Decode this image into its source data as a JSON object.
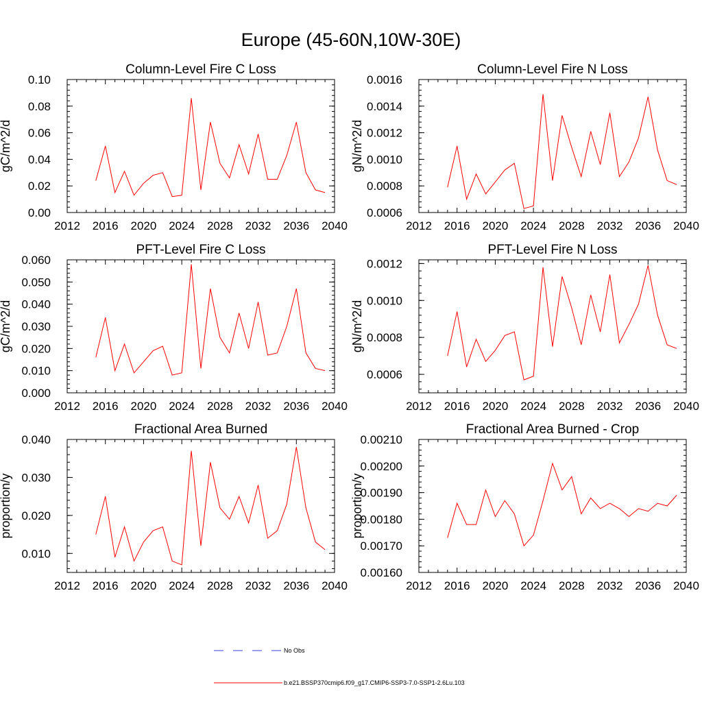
{
  "figure": {
    "title": "Europe (45-60N,10W-30E)"
  },
  "legend": {
    "entries": [
      {
        "label": "No Obs",
        "color": "#3b3bdc",
        "style": "dashed"
      },
      {
        "label": "b.e21.BSSP370cmip6.f09_g17.CMIP6-SSP3-7.0-SSP1-2.6Lu.103",
        "color": "#ff0000",
        "style": "solid"
      }
    ]
  },
  "chart_data": [
    {
      "type": "line",
      "title": "Column-Level Fire C Loss",
      "ylabel": "gC/m^2/d",
      "xlim": [
        2012,
        2040
      ],
      "ylim": [
        0,
        0.1
      ],
      "xticks": [
        "2012",
        "2016",
        "2020",
        "2024",
        "2028",
        "2032",
        "2036",
        "2040"
      ],
      "yticks": [
        "0.00",
        "0.02",
        "0.04",
        "0.06",
        "0.08",
        "0.10"
      ],
      "x": [
        2015,
        2016,
        2017,
        2018,
        2019,
        2020,
        2021,
        2022,
        2023,
        2024,
        2025,
        2026,
        2027,
        2028,
        2029,
        2030,
        2031,
        2032,
        2033,
        2034,
        2035,
        2036,
        2037,
        2038,
        2039
      ],
      "series": [
        {
          "color": "#ff0000",
          "values": [
            0.024,
            0.05,
            0.015,
            0.031,
            0.013,
            0.022,
            0.028,
            0.03,
            0.012,
            0.013,
            0.086,
            0.017,
            0.068,
            0.037,
            0.026,
            0.051,
            0.029,
            0.059,
            0.025,
            0.025,
            0.043,
            0.068,
            0.03,
            0.017,
            0.015
          ]
        }
      ]
    },
    {
      "type": "line",
      "title": "Column-Level Fire N Loss",
      "ylabel": "gN/m^2/d",
      "xlim": [
        2012,
        2040
      ],
      "ylim": [
        0.0006,
        0.0016
      ],
      "xticks": [
        "2012",
        "2016",
        "2020",
        "2024",
        "2028",
        "2032",
        "2036",
        "2040"
      ],
      "yticks": [
        "0.0006",
        "0.0008",
        "0.0010",
        "0.0012",
        "0.0014",
        "0.0016"
      ],
      "x": [
        2015,
        2016,
        2017,
        2018,
        2019,
        2020,
        2021,
        2022,
        2023,
        2024,
        2025,
        2026,
        2027,
        2028,
        2029,
        2030,
        2031,
        2032,
        2033,
        2034,
        2035,
        2036,
        2037,
        2038,
        2039
      ],
      "series": [
        {
          "color": "#ff0000",
          "values": [
            0.00079,
            0.0011,
            0.0007,
            0.00089,
            0.00074,
            0.00083,
            0.00092,
            0.00097,
            0.00063,
            0.00065,
            0.00149,
            0.00084,
            0.00133,
            0.00109,
            0.00087,
            0.00121,
            0.00096,
            0.00135,
            0.00087,
            0.00098,
            0.00116,
            0.00147,
            0.00107,
            0.00084,
            0.00081
          ]
        }
      ]
    },
    {
      "type": "line",
      "title": "PFT-Level Fire C Loss",
      "ylabel": "gC/m^2/d",
      "xlim": [
        2012,
        2040
      ],
      "ylim": [
        0,
        0.06
      ],
      "xticks": [
        "2012",
        "2016",
        "2020",
        "2024",
        "2028",
        "2032",
        "2036",
        "2040"
      ],
      "yticks": [
        "0.000",
        "0.010",
        "0.020",
        "0.030",
        "0.040",
        "0.050",
        "0.060"
      ],
      "x": [
        2015,
        2016,
        2017,
        2018,
        2019,
        2020,
        2021,
        2022,
        2023,
        2024,
        2025,
        2026,
        2027,
        2028,
        2029,
        2030,
        2031,
        2032,
        2033,
        2034,
        2035,
        2036,
        2037,
        2038,
        2039
      ],
      "series": [
        {
          "color": "#ff0000",
          "values": [
            0.016,
            0.034,
            0.01,
            0.022,
            0.009,
            0.014,
            0.019,
            0.021,
            0.008,
            0.009,
            0.058,
            0.011,
            0.047,
            0.025,
            0.018,
            0.036,
            0.02,
            0.041,
            0.017,
            0.018,
            0.03,
            0.047,
            0.018,
            0.011,
            0.01
          ]
        }
      ]
    },
    {
      "type": "line",
      "title": "PFT-Level Fire N Loss",
      "ylabel": "gN/m^2/d",
      "xlim": [
        2012,
        2040
      ],
      "ylim": [
        0.0005,
        0.00122
      ],
      "xticks": [
        "2012",
        "2016",
        "2020",
        "2024",
        "2028",
        "2032",
        "2036",
        "2040"
      ],
      "yticks": [
        "0.0006",
        "0.0008",
        "0.0010",
        "0.0012"
      ],
      "x": [
        2015,
        2016,
        2017,
        2018,
        2019,
        2020,
        2021,
        2022,
        2023,
        2024,
        2025,
        2026,
        2027,
        2028,
        2029,
        2030,
        2031,
        2032,
        2033,
        2034,
        2035,
        2036,
        2037,
        2038,
        2039
      ],
      "series": [
        {
          "color": "#ff0000",
          "values": [
            0.0007,
            0.00094,
            0.00064,
            0.00079,
            0.00067,
            0.00073,
            0.00081,
            0.00083,
            0.00057,
            0.00059,
            0.00118,
            0.00075,
            0.00113,
            0.00096,
            0.00076,
            0.00103,
            0.00083,
            0.00114,
            0.00077,
            0.00087,
            0.00098,
            0.00119,
            0.00092,
            0.00076,
            0.00074
          ]
        }
      ]
    },
    {
      "type": "line",
      "title": "Fractional Area Burned",
      "ylabel": "proportion/y",
      "xlim": [
        2012,
        2040
      ],
      "ylim": [
        0.005,
        0.04
      ],
      "xticks": [
        "2012",
        "2016",
        "2020",
        "2024",
        "2028",
        "2032",
        "2036",
        "2040"
      ],
      "yticks": [
        "0.010",
        "0.020",
        "0.030",
        "0.040"
      ],
      "x": [
        2015,
        2016,
        2017,
        2018,
        2019,
        2020,
        2021,
        2022,
        2023,
        2024,
        2025,
        2026,
        2027,
        2028,
        2029,
        2030,
        2031,
        2032,
        2033,
        2034,
        2035,
        2036,
        2037,
        2038,
        2039
      ],
      "series": [
        {
          "color": "#ff0000",
          "values": [
            0.015,
            0.025,
            0.009,
            0.017,
            0.008,
            0.013,
            0.016,
            0.017,
            0.008,
            0.007,
            0.037,
            0.012,
            0.034,
            0.022,
            0.019,
            0.025,
            0.018,
            0.028,
            0.014,
            0.016,
            0.023,
            0.038,
            0.022,
            0.013,
            0.011
          ]
        }
      ]
    },
    {
      "type": "line",
      "title": "Fractional Area Burned - Crop",
      "ylabel": "proportion/y",
      "xlim": [
        2012,
        2040
      ],
      "ylim": [
        0.0016,
        0.0021
      ],
      "xticks": [
        "2012",
        "2016",
        "2020",
        "2024",
        "2028",
        "2032",
        "2036",
        "2040"
      ],
      "yticks": [
        "0.00160",
        "0.00170",
        "0.00180",
        "0.00190",
        "0.00200",
        "0.00210"
      ],
      "x": [
        2015,
        2016,
        2017,
        2018,
        2019,
        2020,
        2021,
        2022,
        2023,
        2024,
        2025,
        2026,
        2027,
        2028,
        2029,
        2030,
        2031,
        2032,
        2033,
        2034,
        2035,
        2036,
        2037,
        2038,
        2039
      ],
      "series": [
        {
          "color": "#ff0000",
          "values": [
            0.00173,
            0.00186,
            0.00178,
            0.00178,
            0.00191,
            0.00181,
            0.00187,
            0.00182,
            0.0017,
            0.00174,
            0.00187,
            0.00201,
            0.00191,
            0.00196,
            0.00182,
            0.00188,
            0.00184,
            0.00186,
            0.00184,
            0.00181,
            0.00184,
            0.00183,
            0.00186,
            0.00185,
            0.00189
          ]
        }
      ]
    }
  ]
}
